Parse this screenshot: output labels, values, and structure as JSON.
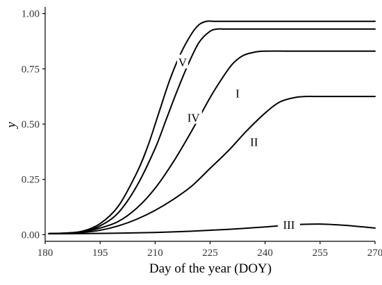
{
  "chart_data": {
    "type": "line",
    "xlabel": "Day of the year (DOY)",
    "ylabel": "y",
    "xlim": [
      180,
      270
    ],
    "ylim": [
      -0.03,
      1.03
    ],
    "xticks": [
      180,
      195,
      210,
      225,
      240,
      255,
      270
    ],
    "yticks": [
      0.0,
      0.25,
      0.5,
      0.75,
      1.0
    ],
    "ytick_labels": [
      "0.00",
      "0.25",
      "0.50",
      "0.75",
      "1.00"
    ],
    "xtick_labels": [
      "180",
      "195",
      "210",
      "225",
      "240",
      "255",
      "270"
    ],
    "grid": false,
    "series": [
      {
        "name": "V",
        "x": [
          181,
          185,
          190,
          195,
          200,
          205,
          208,
          211,
          214,
          217,
          220,
          222,
          224,
          226,
          230,
          240,
          250,
          260,
          270
        ],
        "y": [
          0.005,
          0.007,
          0.015,
          0.05,
          0.13,
          0.28,
          0.4,
          0.55,
          0.7,
          0.82,
          0.91,
          0.95,
          0.965,
          0.965,
          0.965,
          0.965,
          0.965,
          0.965,
          0.965
        ]
      },
      {
        "name": "IV",
        "x": [
          181,
          185,
          190,
          195,
          200,
          205,
          210,
          213,
          216,
          219,
          222,
          225,
          227,
          229,
          235,
          245,
          255,
          270
        ],
        "y": [
          0.005,
          0.007,
          0.013,
          0.04,
          0.1,
          0.22,
          0.39,
          0.52,
          0.65,
          0.77,
          0.87,
          0.92,
          0.93,
          0.93,
          0.93,
          0.93,
          0.93,
          0.93
        ]
      },
      {
        "name": "I",
        "x": [
          181,
          185,
          190,
          195,
          200,
          205,
          210,
          215,
          220,
          225,
          228,
          231,
          234,
          237,
          240,
          250,
          260,
          270
        ],
        "y": [
          0.005,
          0.006,
          0.012,
          0.03,
          0.06,
          0.12,
          0.21,
          0.33,
          0.47,
          0.62,
          0.7,
          0.77,
          0.81,
          0.825,
          0.83,
          0.83,
          0.83,
          0.83
        ]
      },
      {
        "name": "II",
        "x": [
          181,
          185,
          190,
          195,
          200,
          205,
          210,
          215,
          220,
          225,
          230,
          235,
          240,
          244,
          248,
          251,
          255,
          260,
          270
        ],
        "y": [
          0.005,
          0.006,
          0.01,
          0.02,
          0.04,
          0.07,
          0.11,
          0.16,
          0.22,
          0.3,
          0.38,
          0.47,
          0.55,
          0.6,
          0.62,
          0.625,
          0.625,
          0.625,
          0.625
        ]
      },
      {
        "name": "III",
        "x": [
          181,
          190,
          200,
          210,
          220,
          230,
          240,
          248,
          255,
          262,
          270
        ],
        "y": [
          0.004,
          0.005,
          0.007,
          0.01,
          0.016,
          0.024,
          0.035,
          0.045,
          0.048,
          0.042,
          0.03
        ]
      }
    ],
    "curve_labels": [
      {
        "text": "V",
        "x": 217.5,
        "y": 0.78
      },
      {
        "text": "IV",
        "x": 220.5,
        "y": 0.53
      },
      {
        "text": "I",
        "x": 232.5,
        "y": 0.64
      },
      {
        "text": "II",
        "x": 237,
        "y": 0.42
      },
      {
        "text": "III",
        "x": 246.5,
        "y": 0.045
      }
    ]
  }
}
